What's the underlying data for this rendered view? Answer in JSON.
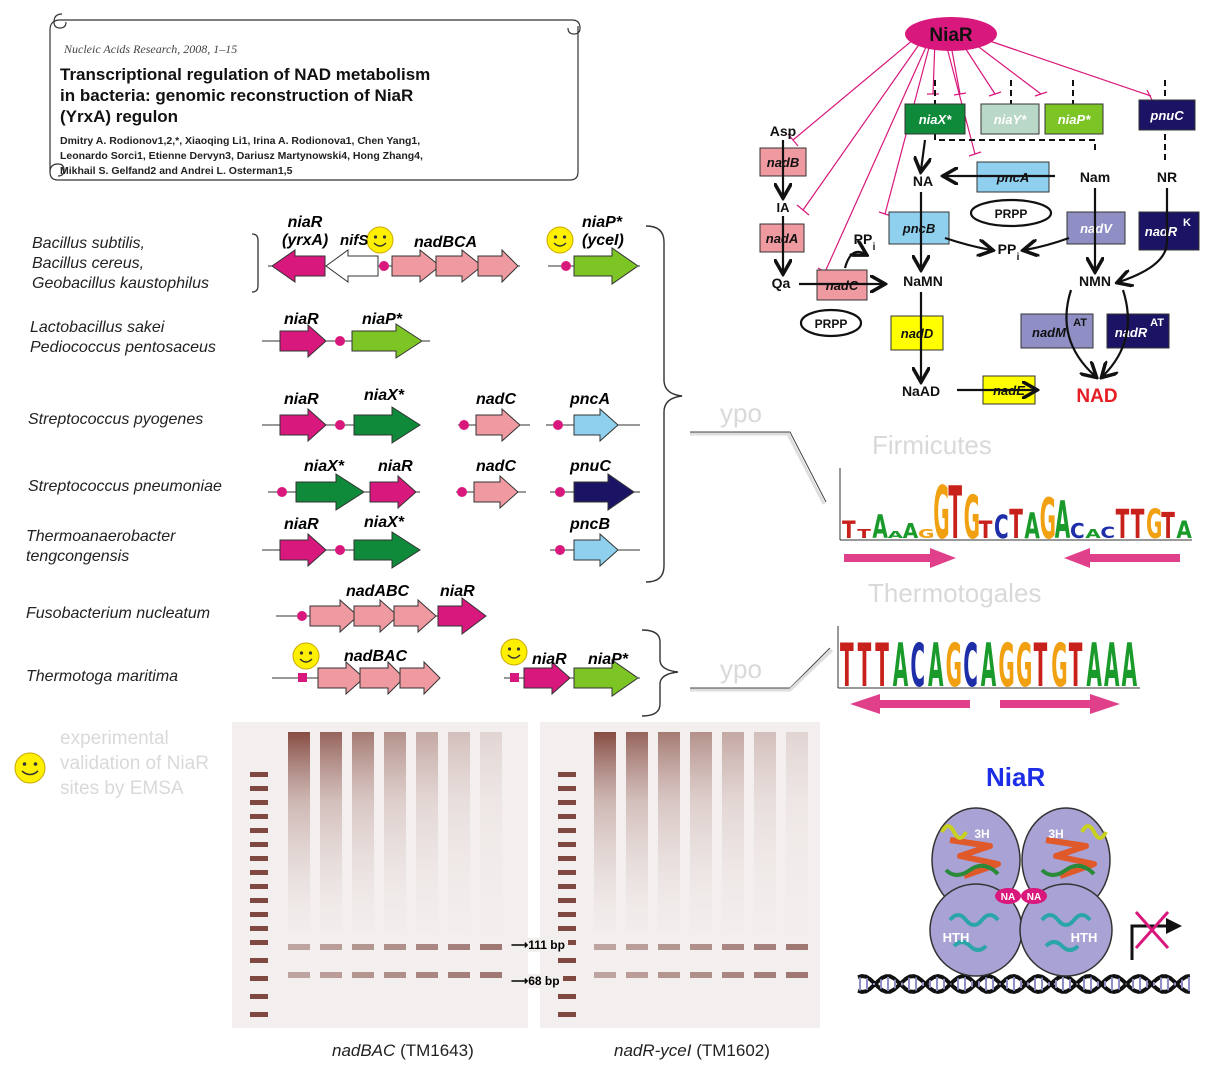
{
  "paper": {
    "journal": "Nucleic Acids Research, 2008, 1–15",
    "title_lines": [
      "Transcriptional regulation of NAD metabolism",
      "in bacteria: genomic reconstruction of NiaR",
      "(YrxA) regulon"
    ],
    "author_lines": [
      "Dmitry A. Rodionov1,2,*, Xiaoqing Li1, Irina A. Rodionova1, Chen Yang1,",
      "Leonardo Sorci1, Etienne Dervyn3, Dariusz Martynowski4, Hong Zhang4,",
      "Mikhail S. Gelfand2 and Andrei L. Osterman1,5"
    ]
  },
  "operons": {
    "groups": [
      {
        "species": [
          "Bacillus subtilis,",
          "Bacillus cereus,",
          "Geobacillus kaustophilus"
        ],
        "genes": [
          "niaR",
          "(yrxA)",
          "nifS",
          "nadBCA",
          "niaP*",
          "(yceI)"
        ]
      },
      {
        "species": [
          "Lactobacillus sakei",
          "Pediococcus pentosaceus"
        ],
        "genes": [
          "niaR",
          "niaP*"
        ]
      },
      {
        "species": [
          "Streptococcus pyogenes"
        ],
        "genes": [
          "niaR",
          "niaX*",
          "nadC",
          "pncA"
        ]
      },
      {
        "species": [
          "Streptococcus pneumoniae"
        ],
        "genes": [
          "niaX*",
          "niaR",
          "nadC",
          "pnuC"
        ]
      },
      {
        "species": [
          "Thermoanaerobacter",
          "tengcongensis"
        ],
        "genes": [
          "niaR",
          "niaX*",
          "pncB"
        ]
      },
      {
        "species": [
          "Fusobacterium nucleatum"
        ],
        "genes": [
          "nadABC",
          "niaR"
        ]
      },
      {
        "species": [
          "Thermotoga maritima"
        ],
        "genes": [
          "nadBAC",
          "niaR",
          "niaP*"
        ]
      }
    ],
    "ghost_labels": [
      "ypo",
      "ypo"
    ]
  },
  "pathway": {
    "regulator": "NiaR",
    "gene_boxes": [
      "niaX*",
      "niaY*",
      "niaP*",
      "pnuC",
      "nadB",
      "pncA",
      "nadA",
      "pncB",
      "nadV",
      "nadR",
      "nadC",
      "nadD",
      "nadM",
      "nadR",
      "nadE"
    ],
    "superscripts": [
      "K",
      "AT",
      "AT"
    ],
    "metabolites": [
      "Asp",
      "IA",
      "Qa",
      "PRPP",
      "PRPP",
      "PP",
      "PP",
      "i",
      "i",
      "NA",
      "Nam",
      "NR",
      "NaMN",
      "NMN",
      "NaAD",
      "NAD"
    ]
  },
  "logos": {
    "ghost_titles": [
      "Firmicutes",
      "Thermotogales"
    ],
    "firmicutes_consensus": "TTAAAGGTGTCTAGACACTTGTA",
    "thermotogales_consensus": "TTTACAGCAGGTGTAAA"
  },
  "emsa": {
    "legend": [
      "experimental",
      "validation of NiaR",
      "sites by EMSA"
    ],
    "markers": [
      "111 bp",
      "68 bp"
    ],
    "captions": [
      {
        "gene": "nadBAC",
        "locus": "(TM1643)"
      },
      {
        "gene": "nadR-yceI",
        "locus": "(TM1602)"
      }
    ]
  },
  "structure": {
    "title": "NiaR",
    "labels": [
      "3H",
      "3H",
      "NA",
      "NA",
      "HTH",
      "HTH"
    ]
  },
  "colors": {
    "magenta": "#d8187c",
    "green_dark": "#0e8a3a",
    "green_light": "#7dc425",
    "salmon": "#ef9aa0",
    "skyblue": "#8fd0ee",
    "navy": "#1b1464",
    "lavender": "#8f8fc6",
    "yellow": "#ffff00",
    "nad_red": "#e61e25",
    "niaR_blue": "#1e2ee6",
    "pale_green": "#b9d8c8"
  }
}
